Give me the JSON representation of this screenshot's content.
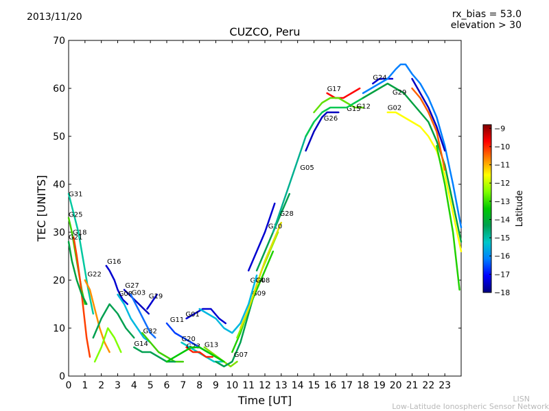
{
  "header": {
    "date": "2013/11/20",
    "rx_bias": "rx_bias = 53.0",
    "elevation": "elevation > 30"
  },
  "footer": {
    "network_abbr": "LISN",
    "network_name": "Low-Latitude Ionospheric Sensor Network"
  },
  "colormap": [
    "#00007f",
    "#0000ff",
    "#0080ff",
    "#00c8c8",
    "#00a050",
    "#00c800",
    "#80ff00",
    "#ffff00",
    "#ff8000",
    "#ff0000",
    "#800000"
  ],
  "chart_data": {
    "type": "line",
    "title": "CUZCO, Peru",
    "xlabel": "Time [UT]",
    "ylabel": "TEC [UNITS]",
    "xlim": [
      0,
      24
    ],
    "ylim": [
      0,
      70
    ],
    "xticks": [
      0,
      1,
      2,
      3,
      4,
      5,
      6,
      7,
      8,
      9,
      10,
      11,
      12,
      13,
      14,
      15,
      16,
      17,
      18,
      19,
      20,
      21,
      22,
      23
    ],
    "yticks": [
      0,
      10,
      20,
      30,
      40,
      50,
      60,
      70
    ],
    "grid": false,
    "colorbar": {
      "label": "Latitude",
      "range": [
        -18,
        -8.8
      ],
      "ticks": [
        -9,
        -10,
        -11,
        -12,
        -13,
        -14,
        -15,
        -16,
        -17,
        -18
      ]
    },
    "series": [
      {
        "name": "G31",
        "label_at": [
          0.0,
          37.5
        ],
        "color": "#00c8a0",
        "x": [
          0.0,
          0.3,
          0.6,
          0.9,
          1.2,
          1.5
        ],
        "y": [
          38,
          34,
          30,
          24,
          18,
          13
        ]
      },
      {
        "name": "G25",
        "label_at": [
          0.0,
          33.2
        ],
        "color": "#40d000",
        "x": [
          0.0,
          0.2,
          0.4,
          0.6,
          0.8,
          1.0
        ],
        "y": [
          33,
          30,
          26,
          22,
          18,
          15
        ]
      },
      {
        "name": "G18",
        "label_at": [
          0.25,
          29.5
        ],
        "color": "#ff4000",
        "x": [
          0.3,
          0.5,
          0.7,
          0.9,
          1.1,
          1.3
        ],
        "y": [
          29,
          25,
          20,
          14,
          8,
          4
        ]
      },
      {
        "name": "G21",
        "label_at": [
          0.0,
          28.5
        ],
        "color": "#00a040",
        "x": [
          0.0,
          0.2,
          0.5,
          0.8,
          1.1
        ],
        "y": [
          28,
          24,
          20,
          17,
          15
        ]
      },
      {
        "name": "G22",
        "label_at": [
          1.15,
          20.8
        ],
        "color": "#ff9000",
        "x": [
          1.0,
          1.3,
          1.6,
          1.9,
          2.2,
          2.5
        ],
        "y": [
          20,
          18,
          14,
          10,
          7,
          5
        ]
      },
      {
        "name": "G16",
        "label_at": [
          2.35,
          23.4
        ],
        "color": "#0000d0",
        "x": [
          2.3,
          2.5,
          2.8,
          3.0,
          3.3,
          3.6
        ],
        "y": [
          23,
          22,
          20,
          18,
          16,
          15
        ]
      },
      {
        "name": "G27",
        "label_at": [
          3.45,
          18.4
        ],
        "color": "#0000c0",
        "x": [
          3.4,
          3.7,
          4.0,
          4.3,
          4.6,
          4.9
        ],
        "y": [
          18,
          17,
          16,
          15,
          14,
          13
        ]
      },
      {
        "name": "G08",
        "label_at": [
          3.05,
          16.7
        ],
        "color": "#00b8e0",
        "x": [
          3.0,
          3.4,
          3.8,
          4.2,
          4.6,
          5.0
        ],
        "y": [
          17,
          15,
          12,
          10,
          8,
          7
        ]
      },
      {
        "name": "G03",
        "label_at": [
          3.85,
          16.9
        ],
        "color": "#1070ff",
        "x": [
          3.8,
          4.1,
          4.4,
          4.7,
          5.0,
          5.3
        ],
        "y": [
          17,
          15,
          13,
          11,
          9,
          8
        ]
      },
      {
        "name": "G19",
        "label_at": [
          4.9,
          16.2
        ],
        "color": "#0000d0",
        "x": [
          4.8,
          5.0,
          5.2,
          5.4
        ],
        "y": [
          14,
          15,
          16,
          17
        ]
      },
      {
        "name": "G32",
        "label_at": [
          4.55,
          8.9
        ],
        "color": "#40d000",
        "x": [
          4.5,
          5.0,
          5.5,
          6.0,
          6.5,
          7.0
        ],
        "y": [
          9,
          7,
          5,
          4,
          3,
          3
        ]
      },
      {
        "name": "G14",
        "label_at": [
          4.0,
          6.3
        ],
        "color": "#00a050",
        "x": [
          4.0,
          4.5,
          5.0,
          5.5,
          6.0,
          6.5
        ],
        "y": [
          6,
          5,
          5,
          4,
          3,
          3
        ]
      },
      {
        "name": "G11",
        "label_at": [
          6.2,
          11.3
        ],
        "color": "#0040ff",
        "x": [
          6.0,
          6.5,
          7.0,
          7.5,
          8.0,
          8.5
        ],
        "y": [
          11,
          9,
          8,
          7,
          6,
          5
        ]
      },
      {
        "name": "G01",
        "label_at": [
          7.15,
          12.4
        ],
        "color": "#0000d0",
        "x": [
          7.2,
          7.7,
          8.2,
          8.7,
          9.2,
          9.6
        ],
        "y": [
          12,
          13,
          14,
          14,
          12,
          11
        ]
      },
      {
        "name": "G20",
        "label_at": [
          6.9,
          7.3
        ],
        "color": "#00c8c8",
        "x": [
          6.9,
          7.4,
          7.9,
          8.4,
          8.9,
          9.4
        ],
        "y": [
          7,
          6,
          5,
          4,
          3,
          3
        ]
      },
      {
        "name": "G23",
        "label_at": [
          7.2,
          5.8
        ],
        "color": "#ff2000",
        "x": [
          7.2,
          7.6,
          8.0,
          8.4,
          8.8
        ],
        "y": [
          6,
          5,
          5,
          4,
          4
        ]
      },
      {
        "name": "G13",
        "label_at": [
          8.3,
          6.1
        ],
        "color": "#80e000",
        "x": [
          8.3,
          8.7,
          9.1,
          9.5,
          9.9,
          10.3
        ],
        "y": [
          6,
          5,
          4,
          3,
          2,
          3
        ]
      },
      {
        "name": "G07",
        "label_at": [
          10.1,
          4.0
        ],
        "color": "#00a050",
        "x": [
          9.0,
          9.5,
          10.0,
          10.5,
          11.0,
          11.5
        ],
        "y": [
          3,
          2,
          3,
          7,
          13,
          19
        ]
      },
      {
        "name": "G09",
        "label_at": [
          11.2,
          16.8
        ],
        "color": "#20d000",
        "x": [
          10.0,
          10.5,
          11.0,
          11.5,
          12.0,
          12.5
        ],
        "y": [
          5,
          9,
          14,
          18,
          22,
          26
        ]
      },
      {
        "name": "G04",
        "label_at": [
          11.1,
          19.5
        ],
        "color": "#80f000",
        "x": [
          10.3,
          10.8,
          11.3,
          11.8,
          12.3,
          12.8
        ],
        "y": [
          8,
          12,
          17,
          22,
          26,
          30
        ]
      },
      {
        "name": "G08",
        "label_at": [
          11.45,
          19.5
        ],
        "color": "#e0e000",
        "x": [
          10.5,
          11.0,
          11.5,
          12.0,
          12.5,
          13.0
        ],
        "y": [
          10,
          14,
          19,
          24,
          28,
          32
        ]
      },
      {
        "name": "G10",
        "label_at": [
          12.2,
          30.8
        ],
        "color": "#0000d0",
        "x": [
          11.0,
          11.5,
          12.0,
          12.3,
          12.6
        ],
        "y": [
          22,
          26,
          30,
          33,
          36
        ]
      },
      {
        "name": "G28",
        "label_at": [
          12.9,
          33.4
        ],
        "color": "#00a050",
        "x": [
          11.5,
          12.0,
          12.5,
          13.0,
          13.5
        ],
        "y": [
          22,
          26,
          30,
          34,
          38
        ]
      },
      {
        "name": "G05",
        "label_at": [
          14.15,
          43.0
        ],
        "color": "#00b090",
        "x": [
          12.5,
          13.0,
          13.5,
          14.0,
          14.5,
          15.0
        ],
        "y": [
          30,
          35,
          40,
          45,
          50,
          53
        ]
      },
      {
        "name": "G26",
        "label_at": [
          15.6,
          53.3
        ],
        "color": "#0000c0",
        "x": [
          14.5,
          15.0,
          15.5,
          15.8,
          16.2,
          16.5
        ],
        "y": [
          47,
          51,
          54,
          55,
          55,
          55
        ]
      },
      {
        "name": "G17",
        "label_at": [
          15.8,
          59.4
        ],
        "color": "#ff0000",
        "x": [
          15.8,
          16.3,
          16.8,
          17.3,
          17.8
        ],
        "y": [
          59,
          58,
          58,
          59,
          60
        ]
      },
      {
        "name": "G15",
        "label_at": [
          17.0,
          55.3
        ],
        "color": "#60e000",
        "x": [
          15.0,
          15.5,
          16.0,
          16.5,
          17.0,
          17.5,
          18.0
        ],
        "y": [
          55,
          57,
          58,
          58,
          57,
          56,
          56
        ]
      },
      {
        "name": "G12",
        "label_at": [
          17.6,
          55.8
        ],
        "color": "#00c850",
        "x": [
          14.5,
          15.0,
          15.5,
          16.0,
          16.5,
          17.0,
          17.5,
          18.0
        ],
        "y": [
          50,
          53,
          55,
          56,
          56,
          56,
          57,
          58
        ]
      },
      {
        "name": "G24",
        "label_at": [
          18.6,
          61.8
        ],
        "color": "#0000d0",
        "x": [
          18.6,
          19.0,
          19.4,
          19.8
        ],
        "y": [
          61,
          62,
          62,
          62
        ]
      },
      {
        "name": "G29",
        "label_at": [
          19.8,
          58.7
        ],
        "color": "#00a040",
        "x": [
          18.0,
          18.5,
          19.0,
          19.5,
          20.0,
          20.5,
          21.0,
          21.5,
          22.0,
          22.5,
          23.0,
          23.5,
          24.0
        ],
        "y": [
          58,
          59,
          60,
          61,
          60,
          59,
          57,
          55,
          53,
          49,
          44,
          36,
          28
        ]
      },
      {
        "name": "G02",
        "label_at": [
          19.5,
          55.5
        ],
        "color": "#ffff00",
        "x": [
          19.5,
          20.0,
          20.5,
          21.0,
          21.5,
          22.0,
          22.5,
          23.0,
          23.5,
          24.0
        ],
        "y": [
          55,
          55,
          54,
          53,
          52,
          50,
          47,
          42,
          34,
          26
        ]
      },
      {
        "name": "",
        "label_at": null,
        "color": "#0080ff",
        "x": [
          18.0,
          18.5,
          19.0,
          19.5,
          20.0,
          20.3,
          20.6,
          21.0,
          21.5,
          22.0,
          22.5,
          23.0,
          23.5,
          24.0
        ],
        "y": [
          59,
          60,
          61,
          62,
          64,
          65,
          65,
          63,
          61,
          58,
          54,
          48,
          40,
          31
        ]
      },
      {
        "name": "",
        "label_at": null,
        "color": "#0000c0",
        "x": [
          21.0,
          21.5,
          22.0,
          22.5,
          23.0
        ],
        "y": [
          62,
          59,
          56,
          52,
          47
        ]
      },
      {
        "name": "",
        "label_at": null,
        "color": "#ff6000",
        "x": [
          21.0,
          21.5,
          22.0,
          22.5,
          23.0
        ],
        "y": [
          60,
          58,
          55,
          51,
          43
        ]
      },
      {
        "name": "",
        "label_at": null,
        "color": "#20d000",
        "x": [
          22.5,
          23.0,
          23.5,
          23.9
        ],
        "y": [
          48,
          40,
          30,
          18
        ]
      },
      {
        "name": "",
        "label_at": null,
        "color": "#00b8e0",
        "x": [
          8.0,
          8.5,
          9.0,
          9.5,
          10.0,
          10.5,
          11.0,
          11.5
        ],
        "y": [
          14,
          13,
          12,
          10,
          9,
          11,
          15,
          21
        ]
      },
      {
        "name": "",
        "label_at": null,
        "color": "#00a050",
        "x": [
          1.5,
          2.0,
          2.5,
          3.0,
          3.5,
          4.0
        ],
        "y": [
          8,
          12,
          15,
          13,
          10,
          8
        ]
      },
      {
        "name": "",
        "label_at": null,
        "color": "#80ff00",
        "x": [
          1.6,
          2.0,
          2.4,
          2.8,
          3.2
        ],
        "y": [
          3,
          6,
          10,
          8,
          5
        ]
      },
      {
        "name": "",
        "label_at": null,
        "color": "#00c800",
        "x": [
          6.0,
          6.5,
          7.0,
          7.5,
          8.0,
          8.5,
          9.0,
          9.5
        ],
        "y": [
          3,
          4,
          5,
          6,
          6,
          5,
          4,
          3
        ]
      }
    ]
  }
}
